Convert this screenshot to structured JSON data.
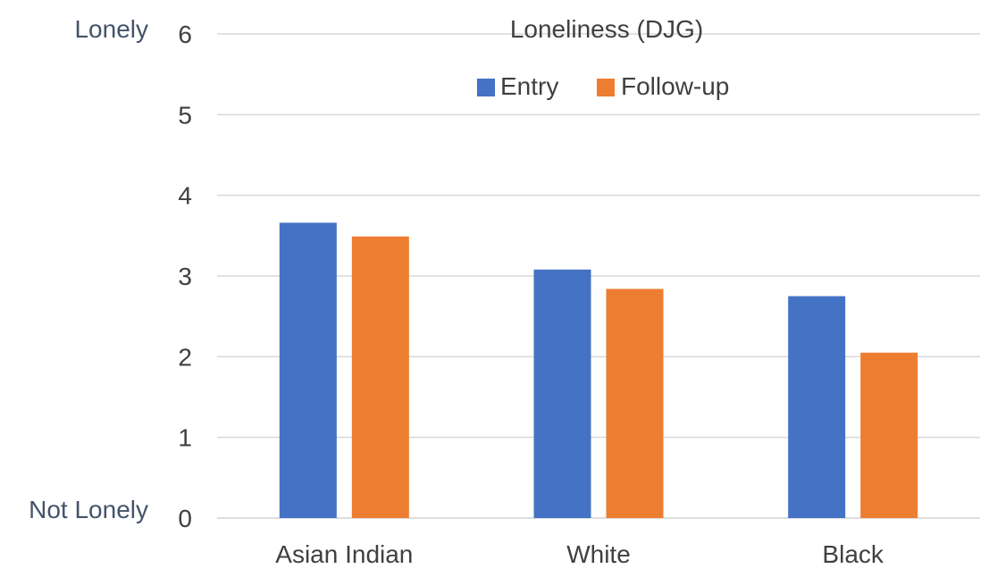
{
  "chart_data": {
    "type": "bar",
    "title": "Loneliness (DJG)",
    "categories": [
      "Asian Indian",
      "White",
      "Black"
    ],
    "series": [
      {
        "name": "Entry",
        "values": [
          3.66,
          3.08,
          2.75
        ],
        "color": "#4472C4"
      },
      {
        "name": "Follow-up",
        "values": [
          3.49,
          2.84,
          2.05
        ],
        "color": "#ED7D31"
      }
    ],
    "ylim": [
      0,
      6
    ],
    "yticks": [
      0,
      1,
      2,
      3,
      4,
      5,
      6
    ],
    "y_top_label": "Lonely",
    "y_bottom_label": "Not Lonely",
    "xlabel": "",
    "ylabel": "",
    "grid": true,
    "legend_position": "top-center"
  },
  "colors": {
    "grid": "#d9d9d9",
    "text": "#404040",
    "side_label": "#44546A"
  }
}
